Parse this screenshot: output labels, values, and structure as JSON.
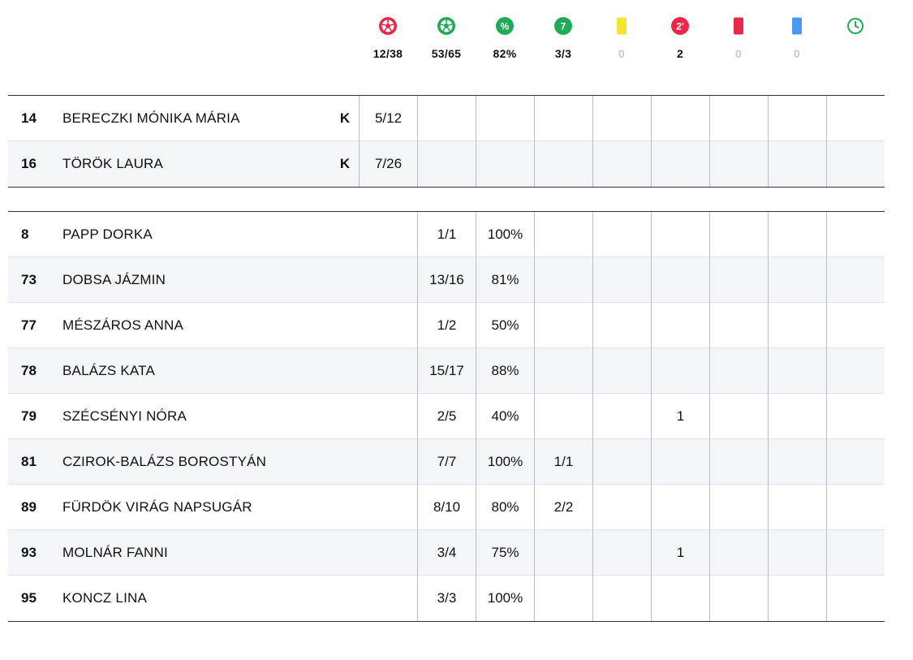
{
  "summary": [
    {
      "icon": "soccer-ball-red-icon",
      "color": "#e8274b",
      "value": "12/38"
    },
    {
      "icon": "soccer-ball-green-icon",
      "color": "#1faa59",
      "value": "53/65"
    },
    {
      "icon": "percent-icon",
      "color": "#1faa59",
      "symbol": "%",
      "value": "82%"
    },
    {
      "icon": "seven-meter-icon",
      "color": "#1faa59",
      "symbol": "7",
      "value": "3/3"
    },
    {
      "icon": "yellow-card-icon",
      "color": "#f5e52e",
      "value": "0"
    },
    {
      "icon": "two-minute-icon",
      "color": "#e8274b",
      "symbol": "2'",
      "value": "2"
    },
    {
      "icon": "red-card-icon",
      "color": "#e8274b",
      "value": "0"
    },
    {
      "icon": "blue-card-icon",
      "color": "#4a9cf0",
      "value": "0"
    },
    {
      "icon": "clock-icon",
      "color": "#1faa59",
      "value": ""
    }
  ],
  "goalkeepers": [
    {
      "number": "14",
      "name": "BERECZKI MÓNIKA MÁRIA",
      "pos": "K",
      "cells": [
        "5/12",
        "",
        "",
        "",
        "",
        "",
        "",
        "",
        ""
      ]
    },
    {
      "number": "16",
      "name": "TÖRÖK LAURA",
      "pos": "K",
      "cells": [
        "7/26",
        "",
        "",
        "",
        "",
        "",
        "",
        "",
        ""
      ]
    }
  ],
  "players": [
    {
      "number": "8",
      "name": "PAPP DORKA",
      "cells": [
        "1/1",
        "100%",
        "",
        "",
        "",
        "",
        "",
        ""
      ]
    },
    {
      "number": "73",
      "name": "DOBSA JÁZMIN",
      "cells": [
        "13/16",
        "81%",
        "",
        "",
        "",
        "",
        "",
        ""
      ]
    },
    {
      "number": "77",
      "name": "MÉSZÁROS ANNA",
      "cells": [
        "1/2",
        "50%",
        "",
        "",
        "",
        "",
        "",
        ""
      ]
    },
    {
      "number": "78",
      "name": "BALÁZS KATA",
      "cells": [
        "15/17",
        "88%",
        "",
        "",
        "",
        "",
        "",
        ""
      ]
    },
    {
      "number": "79",
      "name": "SZÉCSÉNYI NÓRA",
      "cells": [
        "2/5",
        "40%",
        "",
        "",
        "1",
        "",
        "",
        ""
      ]
    },
    {
      "number": "81",
      "name": "CZIROK-BALÁZS BOROSTYÁN",
      "cells": [
        "7/7",
        "100%",
        "1/1",
        "",
        "",
        "",
        "",
        ""
      ]
    },
    {
      "number": "89",
      "name": "FÜRDÖK VIRÁG NAPSUGÁR",
      "cells": [
        "8/10",
        "80%",
        "2/2",
        "",
        "",
        "",
        "",
        ""
      ]
    },
    {
      "number": "93",
      "name": "MOLNÁR FANNI",
      "cells": [
        "3/4",
        "75%",
        "",
        "",
        "1",
        "",
        "",
        ""
      ]
    },
    {
      "number": "95",
      "name": "KONCZ LINA",
      "cells": [
        "3/3",
        "100%",
        "",
        "",
        "",
        "",
        "",
        ""
      ]
    }
  ]
}
